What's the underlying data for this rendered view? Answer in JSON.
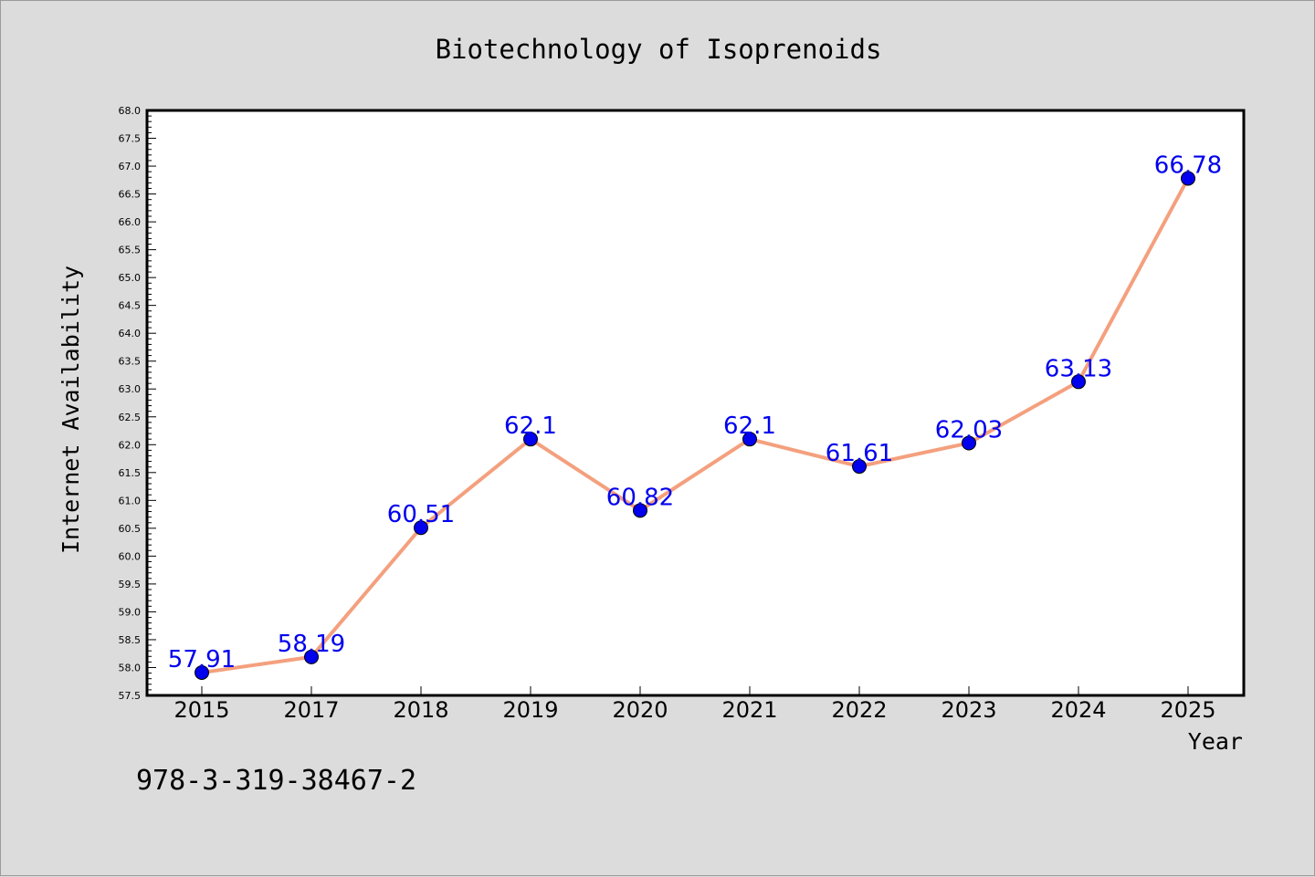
{
  "chart_data": {
    "type": "line",
    "title": "Biotechnology of Isoprenoids",
    "xlabel": "Year",
    "ylabel": "Internet Availability",
    "categories": [
      "2015",
      "2017",
      "2018",
      "2019",
      "2020",
      "2021",
      "2022",
      "2023",
      "2024",
      "2025"
    ],
    "series": [
      {
        "values": [
          57.91,
          58.19,
          60.51,
          62.1,
          60.82,
          62.1,
          61.61,
          62.03,
          63.13,
          66.78
        ],
        "labels": [
          "57.91",
          "58.19",
          "60.51",
          "62.1",
          "60.82",
          "62.1",
          "61.61",
          "62.03",
          "63.13",
          "66.78"
        ]
      }
    ],
    "ylim": [
      57.5,
      68.0
    ],
    "yticks": [
      "57.5",
      "58.0",
      "58.5",
      "59.0",
      "59.5",
      "60.0",
      "60.5",
      "61.0",
      "61.5",
      "62.0",
      "62.5",
      "63.0",
      "63.5",
      "64.0",
      "64.5",
      "65.0",
      "65.5",
      "66.0",
      "66.5",
      "67.0",
      "67.5",
      "68.0"
    ],
    "grid": false,
    "legend": "none",
    "colors": {
      "line": "#f4a07e",
      "marker": "#0000ee",
      "label": "#0000ee",
      "background": "#dcdcdc",
      "plot_background": "#ffffff"
    }
  },
  "footnote": "978-3-319-38467-2"
}
